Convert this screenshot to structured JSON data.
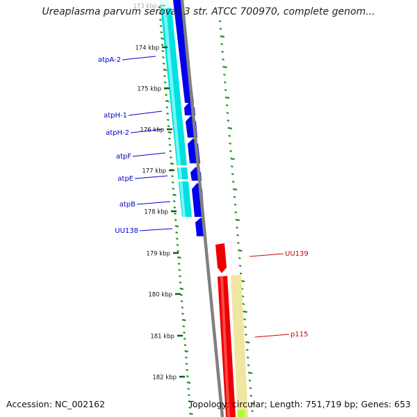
{
  "title": "Ureaplasma parvum serovar 3 str. ATCC 700970, complete genom...",
  "accession_text": "Accession: NC_002162",
  "topology_text": "Topology: circular; Length: 751,719 bp; Genes: 653",
  "ticks": [
    {
      "label": "173 kbp",
      "pos": 0
    },
    {
      "label": "174 kbp",
      "pos": 1
    },
    {
      "label": "175 kbp",
      "pos": 2
    },
    {
      "label": "176 kbp",
      "pos": 3
    },
    {
      "label": "177 kbp",
      "pos": 4
    },
    {
      "label": "178 kbp",
      "pos": 5
    },
    {
      "label": "179 kbp",
      "pos": 6
    },
    {
      "label": "180 kbp",
      "pos": 7
    },
    {
      "label": "181 kbp",
      "pos": 8
    },
    {
      "label": "182 kbp",
      "pos": 9
    }
  ],
  "genes_left": [
    {
      "label": "atpA-2",
      "color": "#0000cc"
    },
    {
      "label": "atpH-1",
      "color": "#0000cc"
    },
    {
      "label": "atpH-2",
      "color": "#0000cc"
    },
    {
      "label": "atpF",
      "color": "#0000cc"
    },
    {
      "label": "atpE",
      "color": "#0000cc"
    },
    {
      "label": "atpB",
      "color": "#0000cc"
    },
    {
      "label": "UU138",
      "color": "#0000cc"
    }
  ],
  "genes_right": [
    {
      "label": "UU139",
      "color": "#cc0000"
    },
    {
      "label": "p115",
      "color": "#cc0000"
    }
  ],
  "colors": {
    "forward_gene": "#ee0000",
    "reverse_gene": "#0000ee",
    "cds_forward": "#f0e6a0",
    "cds_reverse": "#00e0e0",
    "backbone": "#808080",
    "skew": "#228b22",
    "extra": "#aaff33"
  }
}
